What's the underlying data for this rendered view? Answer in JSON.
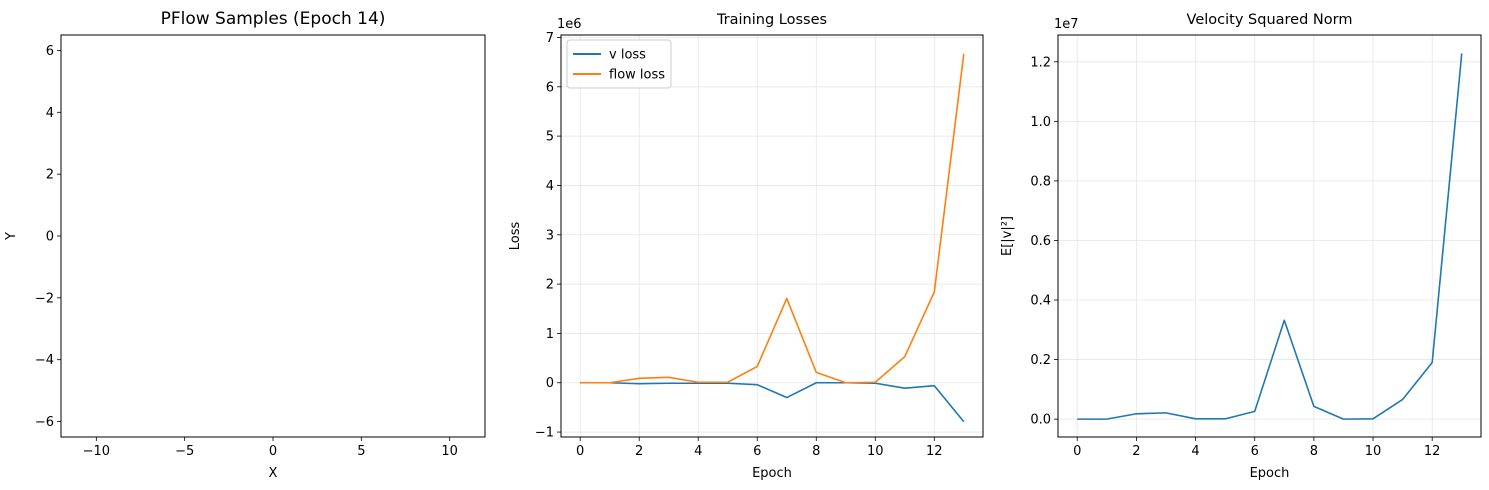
{
  "chart_data": [
    {
      "type": "scatter",
      "title": "PFlow Samples (Epoch 14)",
      "xlabel": "X",
      "ylabel": "Y",
      "xlim": [
        -12,
        12
      ],
      "ylim": [
        -6.5,
        6.5
      ],
      "xticks": [
        -10,
        -5,
        0,
        5,
        10
      ],
      "xtick_labels": [
        "−10",
        "−5",
        "0",
        "5",
        "10"
      ],
      "yticks": [
        -6,
        -4,
        -2,
        0,
        2,
        4,
        6
      ],
      "ytick_labels": [
        "−6",
        "−4",
        "−2",
        "0",
        "2",
        "4",
        "6"
      ],
      "grid": false,
      "points": []
    },
    {
      "type": "line",
      "title": "Training Losses",
      "xlabel": "Epoch",
      "ylabel": "Loss",
      "y_scale_label": "1e6",
      "xlim": [
        -0.65,
        13.65
      ],
      "ylim": [
        -1.1,
        7.05
      ],
      "xticks": [
        0,
        2,
        4,
        6,
        8,
        10,
        12
      ],
      "xtick_labels": [
        "0",
        "2",
        "4",
        "6",
        "8",
        "10",
        "12"
      ],
      "yticks": [
        -1,
        0,
        1,
        2,
        3,
        4,
        5,
        6,
        7
      ],
      "ytick_labels": [
        "−1",
        "0",
        "1",
        "2",
        "3",
        "4",
        "5",
        "6",
        "7"
      ],
      "grid": true,
      "legend": "top-left",
      "x": [
        0,
        1,
        2,
        3,
        4,
        5,
        6,
        7,
        8,
        9,
        10,
        11,
        12,
        13
      ],
      "series": [
        {
          "name": "v loss",
          "color": "#1f77b4",
          "values": [
            0,
            0,
            -0.02,
            -0.01,
            -0.01,
            -0.01,
            -0.04,
            -0.3,
            0,
            0,
            -0.01,
            -0.11,
            -0.06,
            -0.79
          ]
        },
        {
          "name": "flow loss",
          "color": "#ff7f0e",
          "values": [
            0,
            0,
            0.09,
            0.11,
            0.01,
            0.01,
            0.33,
            1.71,
            0.21,
            0,
            0.01,
            0.53,
            1.84,
            6.67
          ]
        }
      ]
    },
    {
      "type": "line",
      "title": "Velocity Squared Norm",
      "xlabel": "Epoch",
      "ylabel": "E[|v|²]",
      "y_scale_label": "1e7",
      "xlim": [
        -0.65,
        13.65
      ],
      "ylim": [
        -0.06,
        1.29
      ],
      "xticks": [
        0,
        2,
        4,
        6,
        8,
        10,
        12
      ],
      "xtick_labels": [
        "0",
        "2",
        "4",
        "6",
        "8",
        "10",
        "12"
      ],
      "yticks": [
        0.0,
        0.2,
        0.4,
        0.6,
        0.8,
        1.0,
        1.2
      ],
      "ytick_labels": [
        "0.0",
        "0.2",
        "0.4",
        "0.6",
        "0.8",
        "1.0",
        "1.2"
      ],
      "grid": true,
      "x": [
        0,
        1,
        2,
        3,
        4,
        5,
        6,
        7,
        8,
        9,
        10,
        11,
        12,
        13
      ],
      "series": [
        {
          "color": "#1f77b4",
          "values": [
            0,
            0,
            0.018,
            0.021,
            0.001,
            0.001,
            0.026,
            0.332,
            0.043,
            0,
            0.001,
            0.066,
            0.19,
            1.228
          ]
        }
      ]
    }
  ]
}
